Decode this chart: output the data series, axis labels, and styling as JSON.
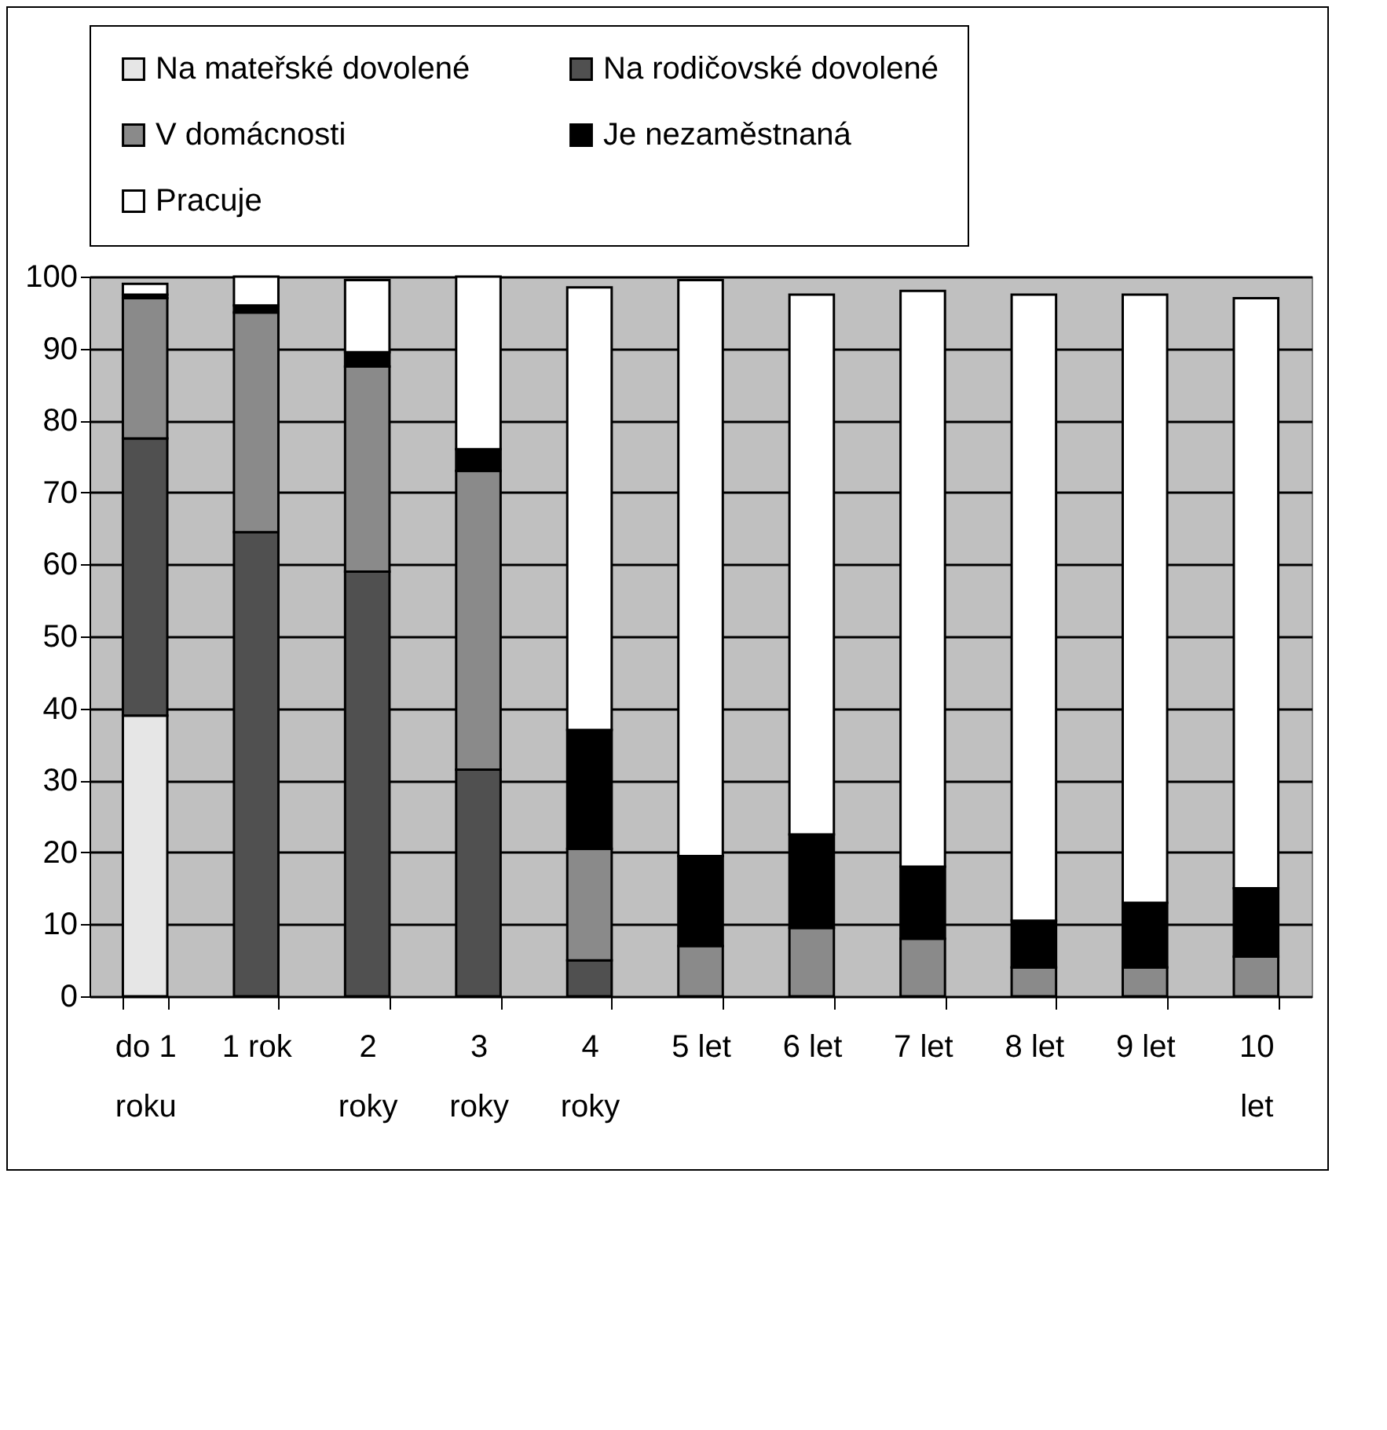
{
  "chart_data": {
    "type": "bar",
    "stacked": true,
    "categories": [
      "do 1 roku",
      "1 rok",
      "2 roky",
      "3 roky",
      "4 roky",
      "5 let",
      "6 let",
      "7 let",
      "8 let",
      "9 let",
      "10 let"
    ],
    "series": [
      {
        "name": "Na mateřské dovolené",
        "color": "#e6e6e6",
        "values": [
          39,
          0,
          0,
          0,
          0,
          0,
          0,
          0,
          0,
          0,
          0
        ]
      },
      {
        "name": "Na rodičovské dovolené",
        "color": "#505050",
        "values": [
          38.5,
          64.5,
          59,
          31.5,
          5,
          0,
          0,
          0,
          0,
          0,
          0
        ]
      },
      {
        "name": "V domácnosti",
        "color": "#8a8a8a",
        "values": [
          19.5,
          30.5,
          28.5,
          41.5,
          15.5,
          7,
          9.5,
          8,
          4,
          4,
          5.5
        ]
      },
      {
        "name": "Je nezaměstnaná",
        "color": "#000000",
        "values": [
          0.5,
          1,
          2,
          3,
          16.5,
          12.5,
          13,
          10,
          6.5,
          9,
          9.5
        ]
      },
      {
        "name": "Pracuje",
        "color": "#ffffff",
        "values": [
          1.5,
          4,
          10,
          24,
          61.5,
          80,
          75,
          80,
          87,
          84.5,
          82
        ]
      }
    ],
    "ylim": [
      0,
      100
    ],
    "yticks": [
      0,
      10,
      20,
      30,
      40,
      50,
      60,
      70,
      80,
      90,
      100
    ],
    "grid": "y",
    "legend": "top"
  }
}
